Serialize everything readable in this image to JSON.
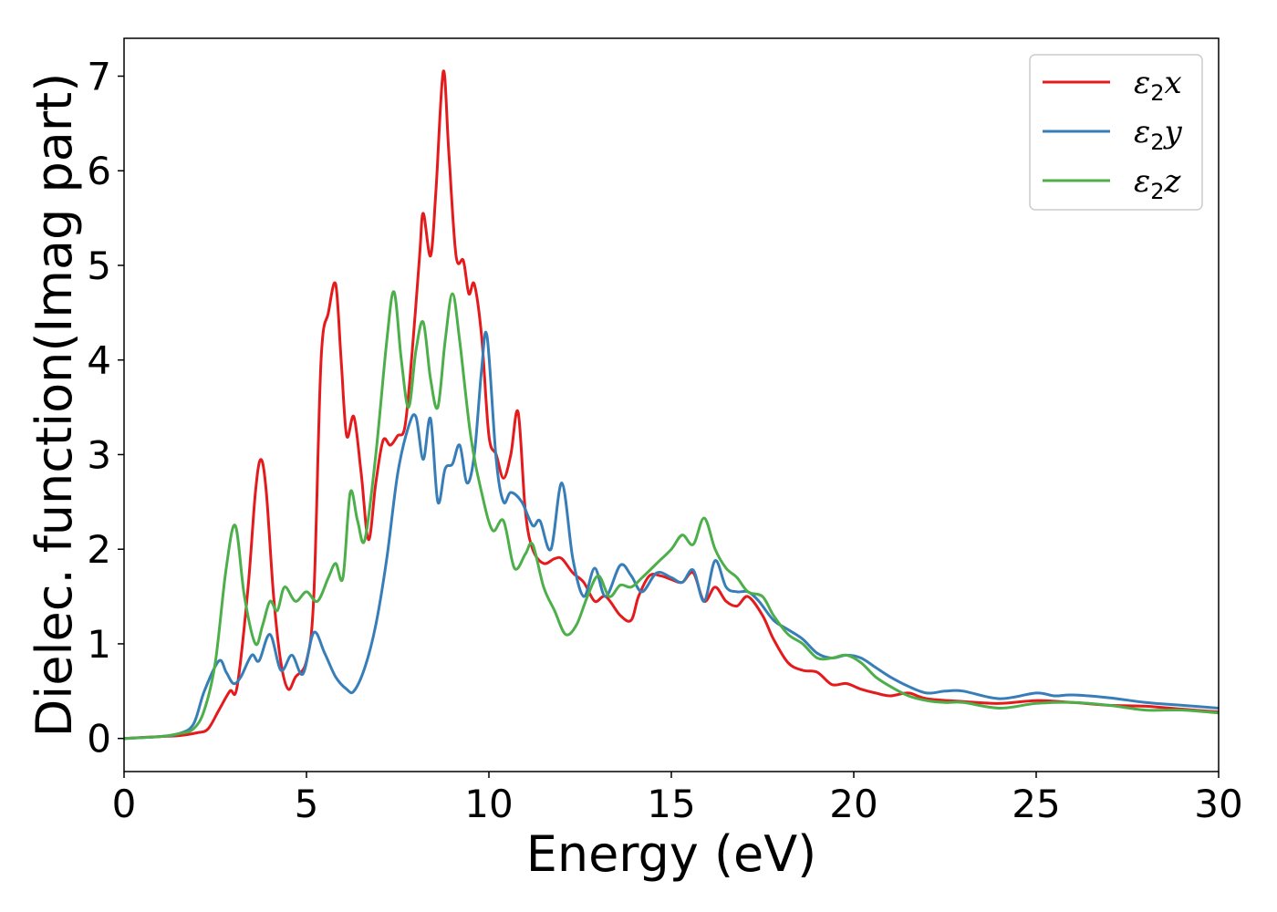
{
  "chart_data": {
    "type": "line",
    "title": "",
    "xlabel": "Energy (eV)",
    "ylabel": "Dielec. function(Imag part)",
    "xlim": [
      0,
      30
    ],
    "ylim": [
      -0.35,
      7.4
    ],
    "xticks": [
      0,
      5,
      10,
      15,
      20,
      25,
      30
    ],
    "yticks": [
      0,
      1,
      2,
      3,
      4,
      5,
      6,
      7
    ],
    "grid": false,
    "legend_position": "top-right",
    "series": [
      {
        "name": "ε2x",
        "color": "#e41a1c",
        "x": [
          0,
          1,
          1.5,
          2,
          2.3,
          2.6,
          2.9,
          3.1,
          3.4,
          3.6,
          3.75,
          3.9,
          4.1,
          4.3,
          4.5,
          4.7,
          5.0,
          5.2,
          5.4,
          5.6,
          5.8,
          5.95,
          6.1,
          6.3,
          6.5,
          6.7,
          6.9,
          7.1,
          7.3,
          7.5,
          7.7,
          7.9,
          8.1,
          8.2,
          8.4,
          8.55,
          8.75,
          8.9,
          9.1,
          9.3,
          9.45,
          9.6,
          9.8,
          10.0,
          10.2,
          10.4,
          10.6,
          10.8,
          11.0,
          11.2,
          11.5,
          11.8,
          12.0,
          12.3,
          12.6,
          12.9,
          13.2,
          13.6,
          13.9,
          14.1,
          14.4,
          14.7,
          15.0,
          15.3,
          15.6,
          15.9,
          16.2,
          16.5,
          16.8,
          17.1,
          17.5,
          17.8,
          18.2,
          18.6,
          19.0,
          19.4,
          19.8,
          20.2,
          20.6,
          21.0,
          21.5,
          22.0,
          23.0,
          24.0,
          25.0,
          26.0,
          27.0,
          28.0,
          29.0,
          30.0
        ],
        "y": [
          0,
          0.02,
          0.03,
          0.06,
          0.1,
          0.3,
          0.5,
          0.55,
          1.6,
          2.6,
          2.95,
          2.6,
          1.5,
          0.8,
          0.52,
          0.65,
          0.82,
          1.5,
          4.0,
          4.5,
          4.8,
          4.0,
          3.2,
          3.4,
          2.8,
          2.1,
          2.7,
          3.15,
          3.1,
          3.2,
          3.3,
          4.1,
          5.1,
          5.55,
          5.1,
          5.8,
          7.05,
          6.2,
          5.1,
          5.05,
          4.7,
          4.8,
          4.25,
          3.2,
          3.0,
          2.75,
          3.0,
          3.45,
          2.4,
          2.0,
          1.85,
          1.9,
          1.9,
          1.75,
          1.65,
          1.45,
          1.5,
          1.3,
          1.25,
          1.5,
          1.72,
          1.72,
          1.68,
          1.65,
          1.75,
          1.45,
          1.6,
          1.45,
          1.4,
          1.5,
          1.3,
          1.05,
          0.8,
          0.72,
          0.7,
          0.57,
          0.58,
          0.52,
          0.48,
          0.45,
          0.48,
          0.42,
          0.39,
          0.37,
          0.4,
          0.38,
          0.35,
          0.34,
          0.31,
          0.28
        ]
      },
      {
        "name": "ε2y",
        "color": "#377eb8",
        "x": [
          0,
          1,
          1.5,
          1.9,
          2.2,
          2.6,
          2.8,
          3.0,
          3.2,
          3.5,
          3.7,
          4.0,
          4.3,
          4.6,
          4.9,
          5.2,
          5.5,
          5.8,
          6.1,
          6.3,
          6.6,
          6.9,
          7.2,
          7.5,
          7.8,
          8.0,
          8.2,
          8.4,
          8.6,
          8.8,
          9.0,
          9.2,
          9.4,
          9.6,
          9.8,
          9.95,
          10.2,
          10.4,
          10.6,
          10.9,
          11.2,
          11.4,
          11.7,
          12.0,
          12.3,
          12.6,
          12.9,
          13.2,
          13.6,
          13.9,
          14.2,
          14.6,
          15.0,
          15.3,
          15.6,
          15.9,
          16.2,
          16.5,
          16.8,
          17.1,
          17.4,
          17.8,
          18.2,
          18.6,
          19.0,
          19.4,
          19.8,
          20.2,
          20.6,
          21.0,
          21.5,
          22.0,
          22.5,
          23.0,
          24.0,
          25.0,
          25.5,
          26.0,
          27.0,
          28.0,
          29.0,
          30.0
        ],
        "y": [
          0,
          0.02,
          0.05,
          0.15,
          0.5,
          0.82,
          0.7,
          0.58,
          0.65,
          0.88,
          0.82,
          1.1,
          0.72,
          0.88,
          0.68,
          1.12,
          0.9,
          0.65,
          0.52,
          0.5,
          0.75,
          1.2,
          1.9,
          2.8,
          3.3,
          3.4,
          2.95,
          3.38,
          2.5,
          2.85,
          2.9,
          3.1,
          2.7,
          3.0,
          3.9,
          4.25,
          2.95,
          2.5,
          2.6,
          2.5,
          2.25,
          2.3,
          2.0,
          2.7,
          1.9,
          1.5,
          1.8,
          1.5,
          1.83,
          1.72,
          1.55,
          1.75,
          1.7,
          1.65,
          1.78,
          1.45,
          1.88,
          1.6,
          1.55,
          1.55,
          1.45,
          1.25,
          1.15,
          1.05,
          0.9,
          0.85,
          0.88,
          0.85,
          0.75,
          0.65,
          0.55,
          0.48,
          0.5,
          0.5,
          0.42,
          0.48,
          0.45,
          0.46,
          0.43,
          0.38,
          0.35,
          0.32
        ]
      },
      {
        "name": "ε2z",
        "color": "#4daf4a",
        "x": [
          0,
          1,
          1.5,
          1.9,
          2.2,
          2.5,
          2.8,
          3.05,
          3.3,
          3.6,
          3.8,
          4.0,
          4.2,
          4.4,
          4.7,
          5.0,
          5.3,
          5.6,
          5.8,
          6.0,
          6.2,
          6.4,
          6.6,
          6.9,
          7.2,
          7.4,
          7.6,
          7.8,
          8.0,
          8.2,
          8.4,
          8.6,
          8.8,
          9.0,
          9.2,
          9.5,
          9.8,
          10.1,
          10.4,
          10.7,
          11.0,
          11.2,
          11.5,
          11.8,
          12.1,
          12.4,
          12.7,
          13.0,
          13.3,
          13.6,
          13.9,
          14.2,
          14.6,
          15.0,
          15.3,
          15.6,
          15.9,
          16.2,
          16.5,
          16.8,
          17.1,
          17.5,
          17.8,
          18.2,
          18.6,
          19.0,
          19.4,
          19.8,
          20.2,
          20.6,
          21.0,
          21.5,
          22.0,
          22.5,
          23.0,
          24.0,
          25.0,
          26.0,
          27.0,
          28.0,
          29.0,
          30.0
        ],
        "y": [
          0,
          0.02,
          0.05,
          0.1,
          0.3,
          0.8,
          1.8,
          2.25,
          1.5,
          1.0,
          1.2,
          1.45,
          1.35,
          1.6,
          1.45,
          1.55,
          1.45,
          1.7,
          1.85,
          1.7,
          2.6,
          2.3,
          2.1,
          3.0,
          4.2,
          4.72,
          4.0,
          3.5,
          4.1,
          4.4,
          3.8,
          3.5,
          4.2,
          4.7,
          4.2,
          3.2,
          2.6,
          2.2,
          2.3,
          1.8,
          1.95,
          2.05,
          1.6,
          1.35,
          1.1,
          1.2,
          1.5,
          1.72,
          1.5,
          1.62,
          1.6,
          1.7,
          1.85,
          2.0,
          2.15,
          2.05,
          2.33,
          2.0,
          1.8,
          1.7,
          1.55,
          1.5,
          1.3,
          1.1,
          1.0,
          0.85,
          0.85,
          0.88,
          0.8,
          0.65,
          0.55,
          0.45,
          0.4,
          0.38,
          0.38,
          0.32,
          0.37,
          0.38,
          0.35,
          0.3,
          0.3,
          0.27
        ]
      }
    ]
  }
}
